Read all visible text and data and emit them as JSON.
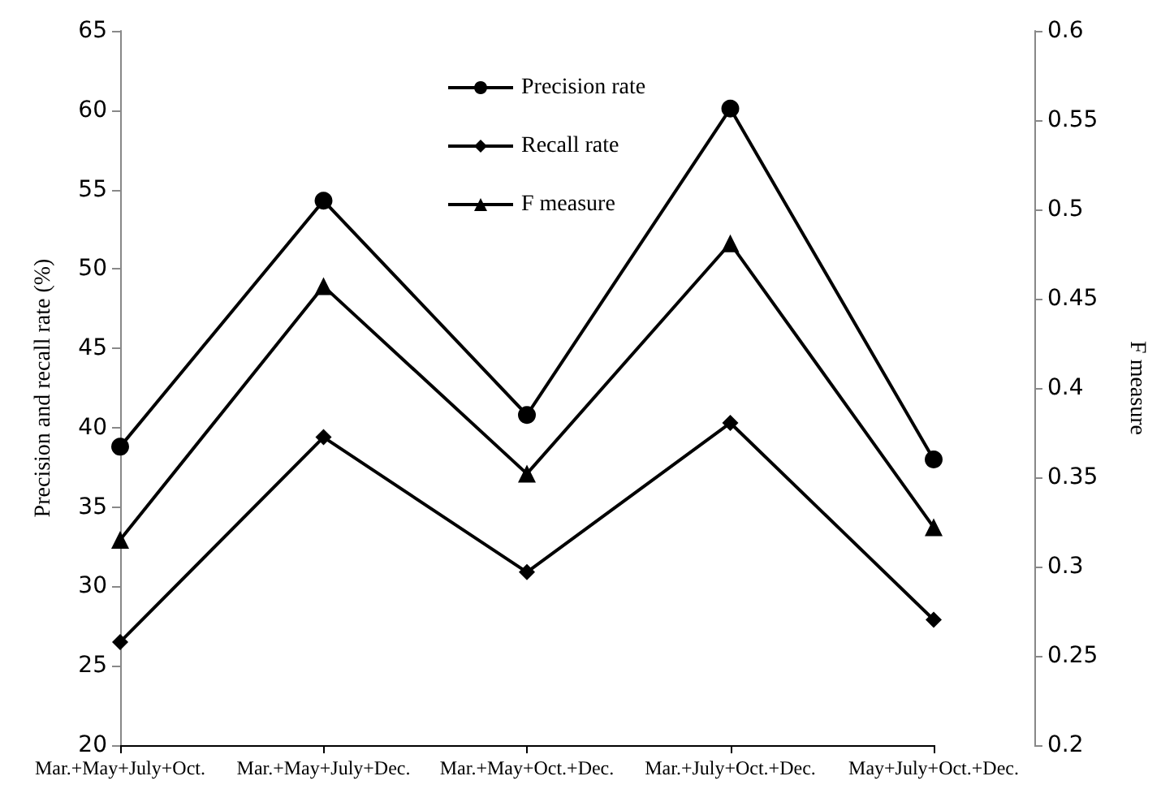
{
  "chart_data": {
    "type": "line",
    "ylabel": "Precision and recall rate (%)",
    "y2label": "F measure",
    "categories": [
      "Mar.+May+July+Oct.",
      "Mar.+May+July+Dec.",
      "Mar.+May+Oct.+Dec.",
      "Mar.+July+Oct.+Dec.",
      "May+July+Oct.+Dec."
    ],
    "series": [
      {
        "name": "Precision rate",
        "color": "#000000",
        "marker": "circle",
        "values": [
          38.8,
          54.3,
          40.8,
          60.1,
          38.0
        ]
      },
      {
        "name": "Recall rate",
        "color": "#000000",
        "marker": "diamond",
        "values": [
          26.5,
          39.4,
          30.9,
          40.3,
          27.9
        ]
      },
      {
        "name": "F measure",
        "color": "#000000",
        "marker": "triangle",
        "axis": "y2",
        "values": [
          0.315,
          0.457,
          0.352,
          0.481,
          0.322
        ]
      }
    ],
    "ylim": [
      20,
      65
    ],
    "yticks": [
      20,
      25,
      30,
      35,
      40,
      45,
      50,
      55,
      60,
      65
    ],
    "y2lim": [
      0.2,
      0.6
    ],
    "y2ticks": [
      0.2,
      0.25,
      0.3,
      0.35,
      0.4,
      0.45,
      0.5,
      0.55,
      0.6
    ],
    "grid": false,
    "legend": "top",
    "line_style": "solid"
  }
}
